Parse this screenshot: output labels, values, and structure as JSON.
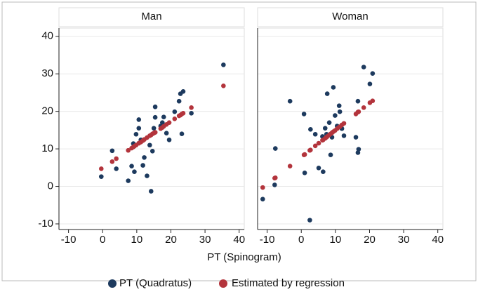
{
  "chart_data": {
    "type": "scatter",
    "x_label": "PT (Spinogram)",
    "xlim": [
      -12.8,
      41.5
    ],
    "ylim": [
      -11.5,
      42.2
    ],
    "xticks": [
      -10,
      0,
      10,
      20,
      30,
      40
    ],
    "yticks": [
      -10,
      0,
      10,
      20,
      30,
      40
    ],
    "grid": true,
    "legend": "bottom",
    "series": [
      {
        "name": "PT (Quadratus)",
        "color": "#1d3a5e",
        "values": [
          [
            2.6,
            9.5,
            4.7,
            1.5,
            5.4,
            3.9,
            11.4,
            13.9,
            17.8,
            15.5,
            12.4,
            5.6,
            7.7,
            2.8,
            11,
            -1.3,
            9.4,
            15.5,
            21.2,
            18.4,
            16.1,
            17,
            18.5,
            14.2,
            12.4,
            19.9,
            22.7,
            24.7,
            25.3,
            14,
            19.5,
            32.4
          ],
          [
            -3.4,
            0.4,
            10.1,
            22.7,
            19.3,
            3.6,
            15.2,
            -9,
            13.9,
            4.9,
            3.9,
            13.3,
            15.5,
            13.9,
            24.7,
            17,
            8.4,
            13.1,
            26.4,
            18.9,
            16.1,
            21.5,
            19.9,
            15.4,
            13.5,
            13.1,
            9,
            9.9,
            22.7,
            31.8,
            27.3,
            30.1
          ]
        ]
      },
      {
        "name": "Estimated by regression",
        "color": "#b3343c",
        "values": [
          [
            4.7,
            6.6,
            7.4,
            9.6,
            10.2,
            10.7,
            10.5,
            11,
            11.5,
            11.5,
            11.8,
            12.2,
            12.5,
            13,
            13.5,
            13.7,
            14,
            14.2,
            14.4,
            14.4,
            15.4,
            15.7,
            16,
            16.5,
            17,
            18,
            18.8,
            19,
            19.5,
            19.3,
            21,
            26.8
          ],
          [
            -0.3,
            2.2,
            2.3,
            5.4,
            8.4,
            8.5,
            9.7,
            9.6,
            10.8,
            11.5,
            12.4,
            12.3,
            12.8,
            13.1,
            13.3,
            13.7,
            14,
            14.3,
            14.6,
            14.9,
            15.4,
            15.8,
            15.9,
            16.4,
            16.8,
            19.3,
            19.8,
            19.9,
            19.8,
            21,
            22.3,
            22.8
          ]
        ]
      }
    ],
    "panels": [
      {
        "title": "Man",
        "x": [
          -0.4,
          2.8,
          4,
          7.5,
          8.5,
          9.3,
          9,
          9.8,
          10.6,
          10.6,
          11.2,
          11.8,
          12.2,
          13,
          13.8,
          14.2,
          14.6,
          15,
          15.4,
          15.4,
          17,
          17.5,
          17.9,
          18.7,
          19.5,
          21.1,
          22.4,
          22.8,
          23.6,
          23.2,
          26,
          35.4
        ]
      },
      {
        "title": "Woman",
        "x": [
          -11.3,
          -7.8,
          -7.6,
          -3.3,
          0.8,
          1,
          2.7,
          2.5,
          4.1,
          5.1,
          6.4,
          6.2,
          7,
          7.4,
          7.6,
          8.2,
          8.6,
          9,
          9.4,
          9.9,
          10.5,
          11.1,
          11.3,
          11.9,
          12.5,
          16,
          16.6,
          16.8,
          16.6,
          18.3,
          20.1,
          20.9
        ]
      }
    ]
  }
}
